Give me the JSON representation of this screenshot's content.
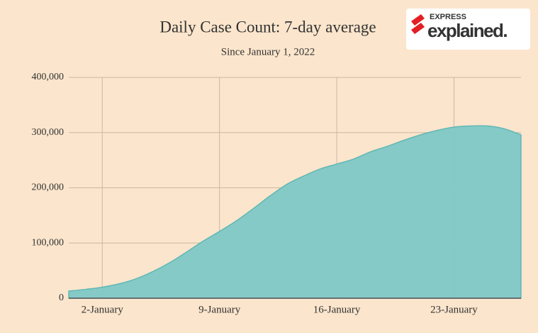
{
  "chart_data": {
    "type": "area",
    "title": "Daily Case Count: 7-day average",
    "subtitle": "Since January 1, 2022",
    "logo": {
      "top": "EXPRESS",
      "main": "explained."
    },
    "categories": [
      null,
      null,
      "2-January",
      null,
      null,
      null,
      null,
      null,
      null,
      "9-January",
      null,
      null,
      null,
      null,
      null,
      null,
      "16-January",
      null,
      null,
      null,
      null,
      null,
      null,
      "23-January",
      null,
      null,
      null,
      null
    ],
    "values": [
      13000,
      16000,
      20000,
      26000,
      35000,
      48000,
      64000,
      83000,
      103000,
      121000,
      140000,
      162000,
      185000,
      206000,
      221000,
      234000,
      243000,
      252000,
      265000,
      275000,
      286000,
      296000,
      304000,
      310000,
      312000,
      312000,
      307000,
      296000
    ],
    "color": "#7ec8c6",
    "ylim": [
      0,
      400000
    ],
    "yticks": [
      0,
      {
        "value": 100000,
        "label": "100,000"
      },
      {
        "value": 200000,
        "label": "200,000"
      },
      {
        "value": 300000,
        "label": "300,000"
      },
      {
        "value": 400000,
        "label": "400,000"
      }
    ],
    "grid": true
  }
}
